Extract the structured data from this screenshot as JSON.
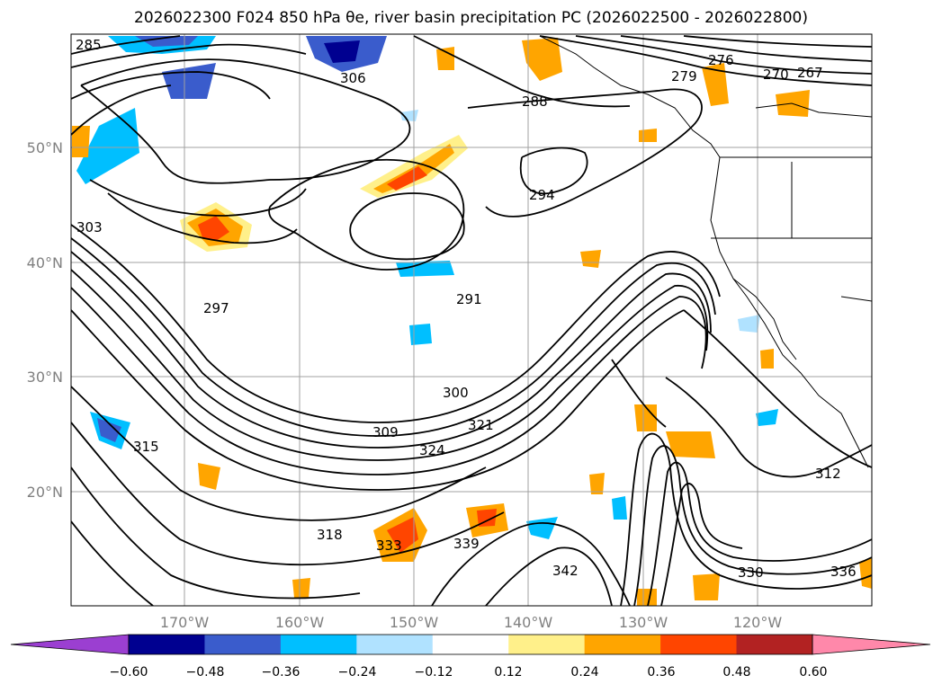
{
  "title": "2026022300 F024 850 hPa θe, river basin precipitation PC (2026022500 - 2026022800)",
  "map": {
    "lat_labels": [
      "50°N",
      "40°N",
      "30°N",
      "20°N"
    ],
    "lon_labels": [
      "170°W",
      "160°W",
      "150°W",
      "140°W",
      "130°W",
      "120°W"
    ],
    "contour_labels": [
      "285",
      "288",
      "291",
      "294",
      "297",
      "300",
      "303",
      "306",
      "309",
      "312",
      "315",
      "318",
      "321",
      "324",
      "330",
      "333",
      "336",
      "339",
      "342",
      "276",
      "279",
      "270",
      "267"
    ]
  },
  "colorbar": {
    "colors": [
      "#9b3fd1",
      "#000090",
      "#3a5ccc",
      "#00bfff",
      "#b0e2ff",
      "#ffffff",
      "#fff08a",
      "#ffa500",
      "#ff4500",
      "#b22222",
      "#ff88aa"
    ],
    "tick_labels": [
      "−0.60",
      "−0.48",
      "−0.36",
      "−0.24",
      "−0.12",
      "0.12",
      "0.24",
      "0.36",
      "0.48",
      "0.60"
    ]
  },
  "colors": {
    "positive_light": "#fff08a",
    "positive_mid": "#ffa500",
    "positive_strong": "#ff4500",
    "negative_light": "#b0e2ff",
    "negative_mid": "#00bfff",
    "negative_strong": "#3a5ccc",
    "contour": "#000000",
    "grid": "#a0a0a0"
  }
}
